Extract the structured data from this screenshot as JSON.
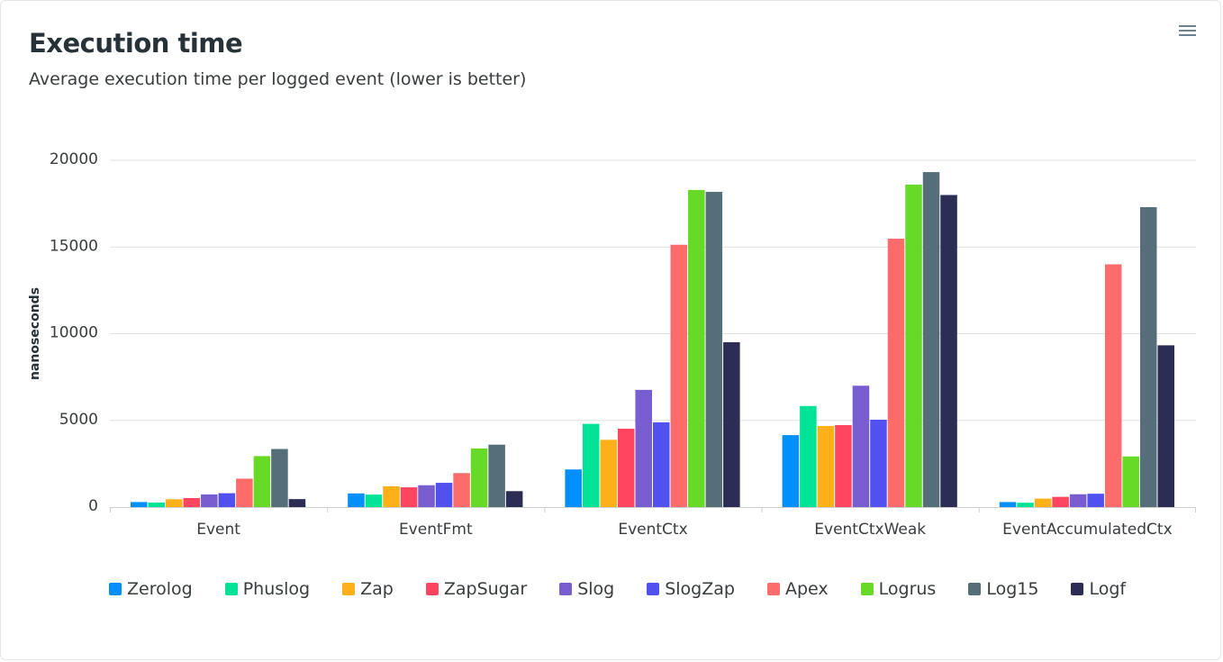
{
  "header": {
    "title": "Execution time",
    "subtitle": "Average execution time per logged event (lower is better)",
    "menu_icon": "hamburger-menu-icon"
  },
  "chart_data": {
    "type": "bar",
    "title": "Execution time",
    "subtitle": "Average execution time per logged event (lower is better)",
    "xlabel": "",
    "ylabel": "nanoseconds",
    "ylim": [
      0,
      20000
    ],
    "yticks": [
      "0",
      "5000",
      "10000",
      "15000",
      "20000"
    ],
    "grid": true,
    "legend_position": "bottom-left",
    "categories": [
      "Event",
      "EventFmt",
      "EventCtx",
      "EventCtxWeak",
      "EventAccumulatedCtx"
    ],
    "series": [
      {
        "name": "Zerolog",
        "color": "#008ffb",
        "values": [
          290,
          790,
          2170,
          4150,
          290
        ]
      },
      {
        "name": "Phuslog",
        "color": "#00e396",
        "values": [
          260,
          720,
          4800,
          5830,
          250
        ]
      },
      {
        "name": "Zap",
        "color": "#feb019",
        "values": [
          450,
          1200,
          3880,
          4680,
          490
        ]
      },
      {
        "name": "ZapSugar",
        "color": "#ff4560",
        "values": [
          520,
          1140,
          4520,
          4730,
          590
        ]
      },
      {
        "name": "Slog",
        "color": "#775dd0",
        "values": [
          730,
          1260,
          6760,
          7000,
          740
        ]
      },
      {
        "name": "SlogZap",
        "color": "#3f51b5",
        "values": [
          800,
          1400,
          4890,
          5040,
          770
        ]
      },
      {
        "name": "Apex",
        "color": "#f86624",
        "values": [
          1640,
          1960,
          15130,
          15480,
          14000
        ]
      },
      {
        "name": "Logrus",
        "color": "#66da26",
        "values": [
          2940,
          3380,
          18290,
          18600,
          2920
        ]
      },
      {
        "name": "Log15",
        "color": "#546e7a",
        "values": [
          3350,
          3600,
          18180,
          19320,
          17300
        ]
      },
      {
        "name": "Logf",
        "color": "#2b2d54",
        "values": [
          460,
          920,
          9510,
          18000,
          9330
        ]
      }
    ]
  }
}
